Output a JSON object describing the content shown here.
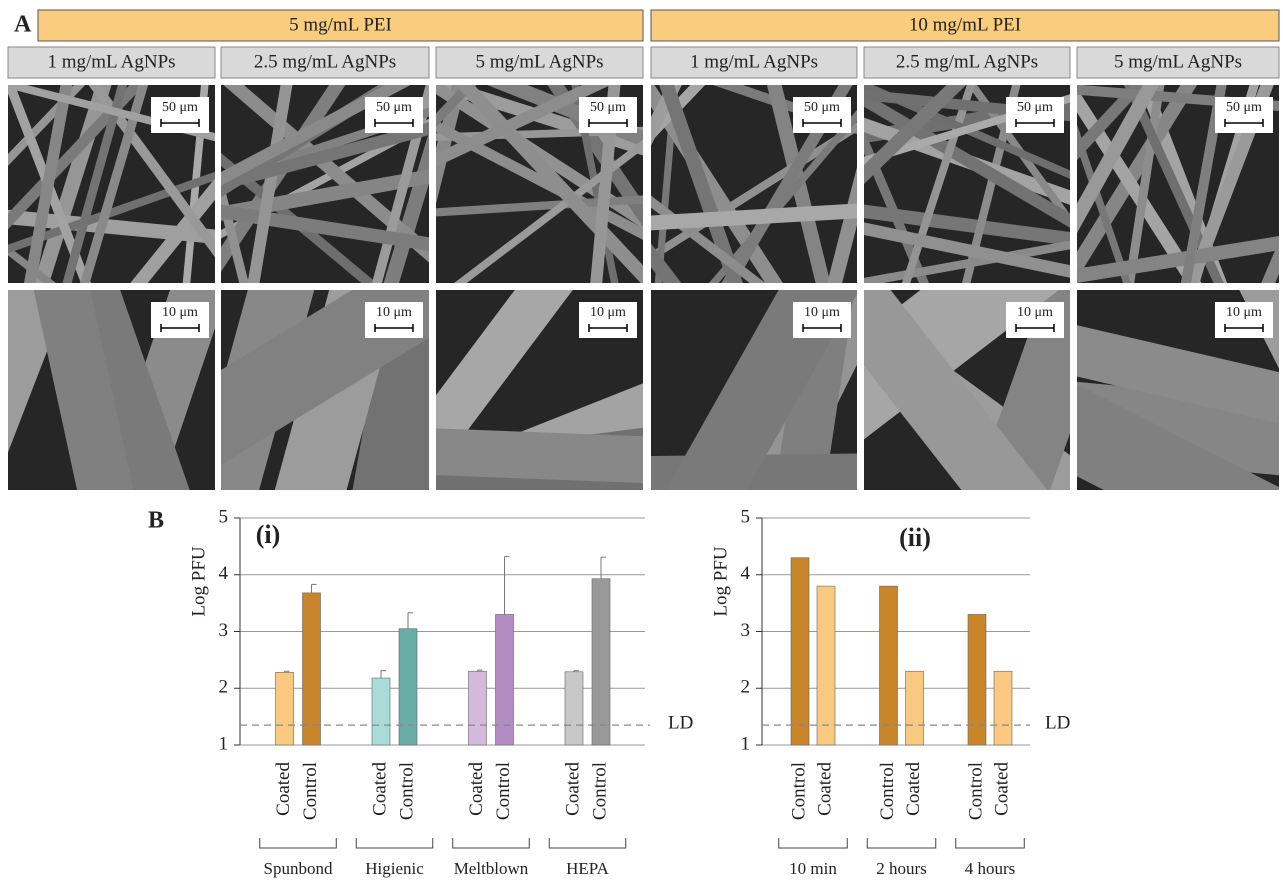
{
  "panel_a": {
    "label": "A",
    "groups": [
      {
        "title": "5 mg/mL PEI",
        "columns": [
          "1 mg/mL AgNPs",
          "2.5 mg/mL AgNPs",
          "5 mg/mL AgNPs"
        ]
      },
      {
        "title": "10 mg/mL PEI",
        "columns": [
          "1 mg/mL AgNPs",
          "2.5 mg/mL AgNPs",
          "5 mg/mL AgNPs"
        ]
      }
    ],
    "scale_bars": [
      "50 μm",
      "10 μm"
    ]
  },
  "panel_b_label": "B",
  "chart_data": [
    {
      "type": "bar",
      "annotation": "(i)",
      "y_label": "Log PFU",
      "categories": [
        "Coated",
        "Control",
        "Coated",
        "Control",
        "Coated",
        "Control",
        "Coated",
        "Control"
      ],
      "groups": [
        "Spunbond",
        "Higienic",
        "Meltblown",
        "HEPA"
      ],
      "values": [
        2.28,
        3.68,
        2.18,
        3.05,
        2.3,
        3.3,
        2.29,
        3.93
      ],
      "errors": [
        0.02,
        0.15,
        0.13,
        0.28,
        0.02,
        1.02,
        0.02,
        0.38
      ],
      "colors": [
        "#f9c97f",
        "#c8852a",
        "#a9dcd8",
        "#6aada7",
        "#d4b9dd",
        "#b48cc4",
        "#c8c8c8",
        "#999999"
      ],
      "ylim": [
        1,
        5
      ],
      "yticks": [
        1,
        2,
        3,
        4,
        5
      ],
      "grid": true,
      "reference_line": {
        "value": 1.35,
        "label": "LD"
      }
    },
    {
      "type": "bar",
      "annotation": "(ii)",
      "y_label": "Log PFU",
      "categories": [
        "Control",
        "Coated",
        "Control",
        "Coated",
        "Control",
        "Coated"
      ],
      "groups": [
        "10 min",
        "2 hours",
        "4 hours"
      ],
      "values": [
        4.3,
        3.8,
        3.8,
        2.3,
        3.3,
        2.3
      ],
      "colors": [
        "#c8852a",
        "#f9c97f",
        "#c8852a",
        "#f9c97f",
        "#c8852a",
        "#f9c97f"
      ],
      "ylim": [
        1,
        5
      ],
      "yticks": [
        1,
        2,
        3,
        4,
        5
      ],
      "grid": true,
      "reference_line": {
        "value": 1.35,
        "label": "LD"
      }
    }
  ]
}
